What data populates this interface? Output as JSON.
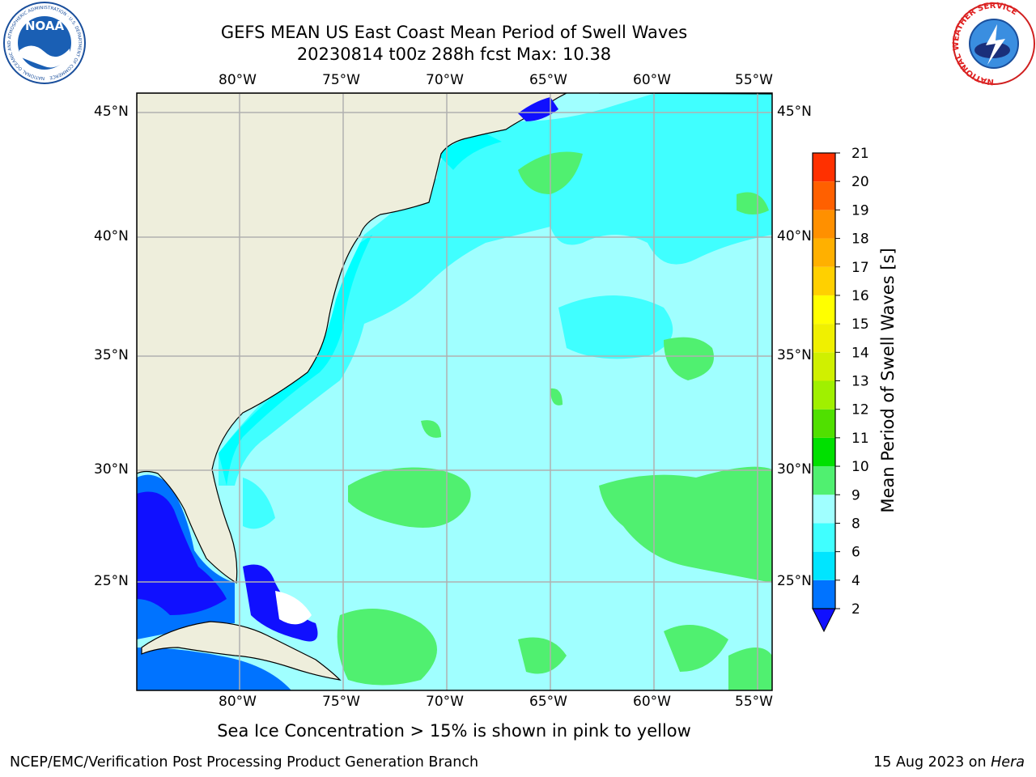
{
  "title": {
    "line1": "GEFS MEAN US East Coast Mean Period of Swell Waves",
    "line2": "20230814 t00z 288h fcst   Max: 10.38"
  },
  "map": {
    "lon_labels": [
      "80°W",
      "75°W",
      "70°W",
      "65°W",
      "60°W",
      "55°W"
    ],
    "lat_labels": [
      "45°N",
      "40°N",
      "35°N",
      "30°N",
      "25°N"
    ],
    "colors": {
      "land": "#eeeedc",
      "grid": "#b0b0b0"
    }
  },
  "colorbar": {
    "label": "Mean Period of Swell Waves [s]",
    "ticks": [
      "2",
      "4",
      "6",
      "8",
      "9",
      "10",
      "11",
      "12",
      "13",
      "14",
      "15",
      "16",
      "17",
      "18",
      "19",
      "20",
      "21"
    ],
    "colors": [
      "#0073ff",
      "#00e5ff",
      "#40ffff",
      "#a0ffff",
      "#50f070",
      "#00e000",
      "#50e000",
      "#a0f000",
      "#d0f000",
      "#f0f000",
      "#ffff00",
      "#ffd000",
      "#ffb000",
      "#ff9000",
      "#ff6000",
      "#ff3000",
      "#ff0000"
    ],
    "extend_color": "#1010ff"
  },
  "footer": {
    "note": "Sea Ice Concentration > 15% is shown in pink to yellow",
    "credit": "NCEP/EMC/Verification Post Processing Product Generation Branch",
    "date": "15 Aug 2023 on ",
    "host": "Hera"
  },
  "logos": {
    "noaa": "NOAA",
    "noaa_ring": "NATIONAL OCEANIC AND ATMOSPHERIC ADMINISTRATION · U.S. DEPARTMENT OF COMMERCE",
    "nws_ring": "NATIONAL WEATHER SERVICE"
  }
}
